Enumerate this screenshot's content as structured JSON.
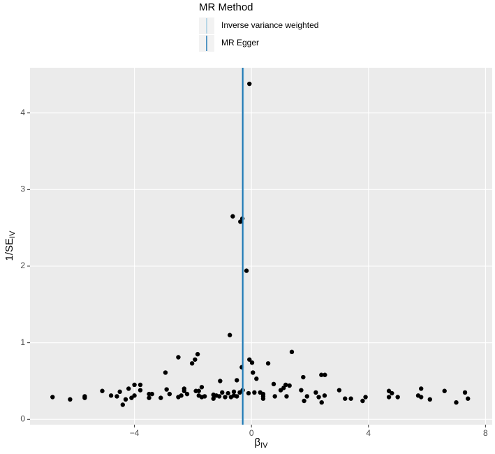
{
  "chart_data": {
    "type": "scatter",
    "legend_title": "MR Method",
    "x_label": "β",
    "x_label_sub": "IV",
    "y_label": "1/SE",
    "y_label_sub": "IV",
    "xlim": [
      -7.57,
      8.23
    ],
    "ylim": [
      -0.07,
      4.59
    ],
    "xticks": [
      {
        "value": -4,
        "label": "−4"
      },
      0,
      4,
      8
    ],
    "yticks": [
      0,
      1,
      2,
      3,
      4
    ],
    "grid": true,
    "point_color": "#000000",
    "vlines": [
      {
        "name": "Inverse variance weighted",
        "color": "#a6cee3",
        "value": -0.28
      },
      {
        "name": "MR Egger",
        "color": "#1f78b4",
        "value": -0.3
      }
    ],
    "x": [
      -0.07,
      -0.64,
      -0.38,
      -0.31,
      -0.17,
      -0.74,
      1.38,
      -0.07,
      0.02,
      0.57,
      -2.5,
      -1.84,
      -1.93,
      -2.03,
      -2.94,
      0.05,
      -0.33,
      -1.07,
      -0.5,
      0.17,
      2.39,
      2.51,
      1.77,
      0.76,
      1.17,
      1.1,
      -6.8,
      -6.2,
      -5.7,
      -5.7,
      -5.1,
      -4.8,
      -4.6,
      -4.5,
      -4.4,
      -4.3,
      -4.2,
      -4.1,
      -4.0,
      -4.0,
      -3.8,
      -3.8,
      -3.5,
      -3.5,
      -3.4,
      -3.1,
      -2.9,
      -2.8,
      -2.5,
      -2.4,
      -2.3,
      -2.3,
      -2.2,
      -1.9,
      -1.8,
      -1.8,
      -1.7,
      -1.7,
      -1.6,
      -1.3,
      -1.3,
      -1.2,
      -1.1,
      -1.0,
      -0.9,
      -0.8,
      -0.7,
      -0.6,
      -0.6,
      -0.5,
      -0.4,
      -0.3,
      -0.1,
      0.1,
      0.3,
      0.4,
      0.4,
      0.4,
      0.8,
      1.0,
      1.2,
      1.3,
      1.7,
      1.8,
      1.9,
      2.2,
      2.3,
      2.4,
      2.5,
      3.0,
      3.2,
      3.4,
      3.8,
      3.9,
      4.7,
      4.7,
      4.8,
      5.0,
      5.7,
      5.8,
      5.8,
      6.1,
      6.6,
      7.0,
      7.3,
      7.4
    ],
    "values": [
      4.38,
      2.65,
      2.58,
      2.62,
      1.94,
      1.1,
      0.88,
      0.78,
      0.74,
      0.73,
      0.81,
      0.85,
      0.78,
      0.73,
      0.61,
      0.61,
      0.68,
      0.5,
      0.51,
      0.53,
      0.58,
      0.58,
      0.55,
      0.46,
      0.45,
      0.41,
      0.29,
      0.26,
      0.3,
      0.28,
      0.37,
      0.31,
      0.3,
      0.36,
      0.19,
      0.26,
      0.4,
      0.28,
      0.45,
      0.31,
      0.45,
      0.38,
      0.28,
      0.33,
      0.33,
      0.28,
      0.39,
      0.33,
      0.29,
      0.31,
      0.37,
      0.4,
      0.33,
      0.37,
      0.31,
      0.37,
      0.42,
      0.29,
      0.3,
      0.27,
      0.32,
      0.31,
      0.3,
      0.35,
      0.29,
      0.34,
      0.29,
      0.31,
      0.36,
      0.3,
      0.35,
      0.38,
      0.34,
      0.35,
      0.35,
      0.3,
      0.33,
      0.27,
      0.3,
      0.38,
      0.3,
      0.44,
      0.38,
      0.24,
      0.3,
      0.35,
      0.29,
      0.22,
      0.31,
      0.38,
      0.27,
      0.27,
      0.24,
      0.29,
      0.37,
      0.29,
      0.34,
      0.29,
      0.31,
      0.4,
      0.29,
      0.26,
      0.37,
      0.22,
      0.35,
      0.27
    ]
  }
}
